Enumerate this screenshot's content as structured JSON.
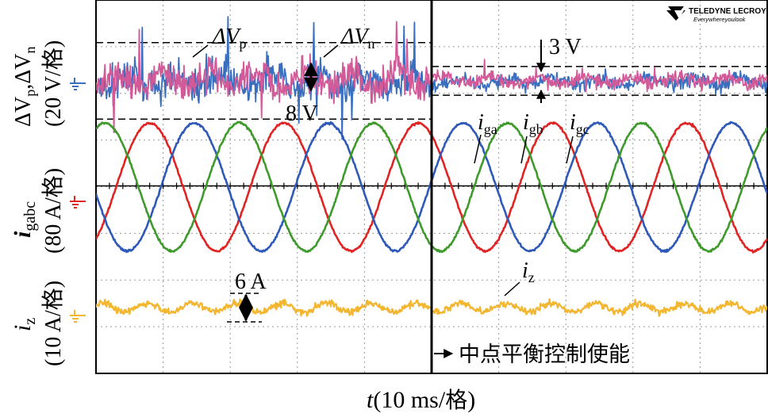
{
  "logo": {
    "brand": "TELEDYNE LECROY",
    "tagline": "Everywhereyoulook"
  },
  "chart_data": {
    "type": "line",
    "title": "",
    "xlabel": "t(10 ms/格)",
    "x_unit_ms_per_div": 10,
    "divisions": {
      "x": 10,
      "y": 8
    },
    "x_range_ms": [
      0,
      100
    ],
    "event": {
      "time_ms": 50,
      "label": "中点平衡控制使能"
    },
    "colors": {
      "vp": "#3a6fc0",
      "vn": "#d25a98",
      "ia": "#e02424",
      "ib": "#2f59b8",
      "ic": "#3f9a2c",
      "iz": "#f2b630"
    },
    "channels": [
      {
        "name": "dv",
        "ylabel_prefix": "ΔV",
        "ylabel_sub": "p",
        "ylabel_mid": ",ΔV",
        "ylabel_sub2": "n",
        "ylabel_scale": "(20 V/格)",
        "scale_per_div": 20,
        "unit": "V",
        "series": [
          {
            "name": "ΔVp",
            "label": "ΔV",
            "sub": "p",
            "color": "#3a6fc0"
          },
          {
            "name": "ΔVn",
            "label": "ΔV",
            "sub": "n",
            "color": "#d25a98"
          }
        ],
        "ripple_before_pp": 8,
        "ripple_after_pp": 3,
        "annotations": [
          "8 V",
          "3 V"
        ]
      },
      {
        "name": "igabc",
        "ylabel_main": "i",
        "ylabel_sub": "gabc",
        "ylabel_scale": "(80 A/格)",
        "scale_per_div": 80,
        "unit": "A",
        "amplitude_A": 112,
        "frequency_hz": 50,
        "series": [
          {
            "name": "iga",
            "label": "i",
            "sub": "ga",
            "color": "#e02424",
            "phase_deg": 0
          },
          {
            "name": "igb",
            "label": "i",
            "sub": "gb",
            "color": "#2f59b8",
            "phase_deg": -120
          },
          {
            "name": "igc",
            "label": "i",
            "sub": "gc",
            "color": "#3f9a2c",
            "phase_deg": 120
          }
        ]
      },
      {
        "name": "iz",
        "ylabel_main": "i",
        "ylabel_sub": "z",
        "ylabel_scale": "(10 A/格)",
        "scale_per_div": 10,
        "unit": "A",
        "series": [
          {
            "name": "iz",
            "label": "i",
            "sub": "z",
            "color": "#f2b630"
          }
        ],
        "ripple_pp": 6,
        "annotations": [
          "6 A"
        ]
      }
    ]
  }
}
